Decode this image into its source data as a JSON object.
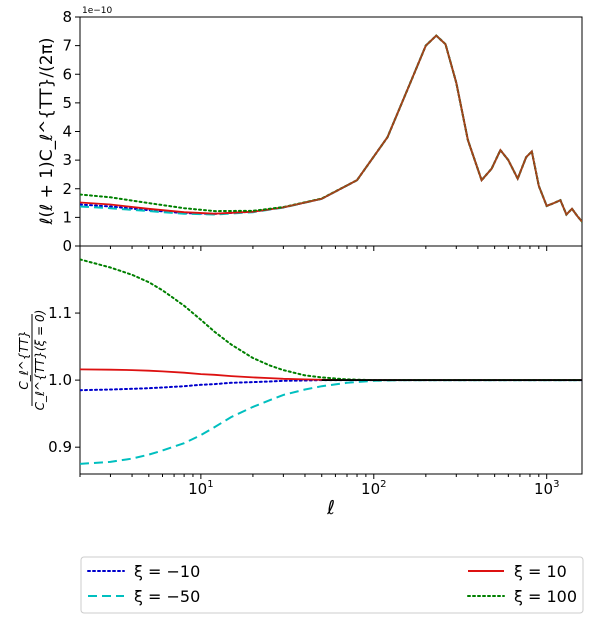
{
  "chart_data": [
    {
      "type": "line",
      "panel": "top",
      "ylabel": "ℓ(ℓ + 1)C_ℓ^{TT}/(2π)",
      "y_offset_label": "1e−10",
      "xscale": "log",
      "xlim": [
        2,
        1600
      ],
      "ylim": [
        0,
        8
      ],
      "y_ticks": [
        "0",
        "1",
        "2",
        "3",
        "4",
        "5",
        "6",
        "7",
        "8"
      ],
      "x_ticks": [
        {
          "value": 10,
          "label": "10",
          "exp": "1"
        },
        {
          "value": 100,
          "label": "10",
          "exp": "2"
        },
        {
          "value": 1000,
          "label": "10",
          "exp": "3"
        }
      ],
      "x": [
        2,
        3,
        5,
        8,
        12,
        20,
        30,
        50,
        80,
        120,
        160,
        200,
        230,
        260,
        300,
        350,
        420,
        480,
        540,
        600,
        680,
        760,
        820,
        900,
        1000,
        1100,
        1200,
        1300,
        1400,
        1500,
        1600
      ],
      "series": [
        {
          "name": "ξ = −10",
          "color": "#0000cc",
          "style": "dotted",
          "values": [
            1.45,
            1.38,
            1.25,
            1.15,
            1.12,
            1.2,
            1.35,
            1.65,
            2.3,
            3.8,
            5.6,
            7.0,
            7.35,
            7.05,
            5.7,
            3.7,
            2.3,
            2.7,
            3.35,
            3.0,
            2.35,
            3.1,
            3.3,
            2.1,
            1.4,
            1.5,
            1.6,
            1.1,
            1.3,
            1.05,
            0.85
          ]
        },
        {
          "name": "ξ = −50",
          "color": "#00bfbf",
          "style": "dashed",
          "values": [
            1.38,
            1.32,
            1.22,
            1.13,
            1.1,
            1.18,
            1.34,
            1.65,
            2.3,
            3.8,
            5.6,
            7.0,
            7.35,
            7.05,
            5.7,
            3.7,
            2.3,
            2.7,
            3.35,
            3.0,
            2.35,
            3.1,
            3.3,
            2.1,
            1.4,
            1.5,
            1.6,
            1.1,
            1.3,
            1.05,
            0.85
          ]
        },
        {
          "name": "ξ = 10",
          "color": "#dd1111",
          "style": "solid",
          "values": [
            1.52,
            1.45,
            1.3,
            1.18,
            1.13,
            1.2,
            1.35,
            1.65,
            2.3,
            3.8,
            5.6,
            7.0,
            7.35,
            7.05,
            5.7,
            3.7,
            2.3,
            2.7,
            3.35,
            3.0,
            2.35,
            3.1,
            3.3,
            2.1,
            1.4,
            1.5,
            1.6,
            1.1,
            1.3,
            1.05,
            0.85
          ]
        },
        {
          "name": "ξ = 100",
          "color": "#008000",
          "style": "dotted",
          "values": [
            1.8,
            1.7,
            1.5,
            1.32,
            1.22,
            1.23,
            1.36,
            1.66,
            2.3,
            3.8,
            5.6,
            7.0,
            7.35,
            7.05,
            5.7,
            3.7,
            2.3,
            2.7,
            3.35,
            3.0,
            2.35,
            3.1,
            3.3,
            2.1,
            1.4,
            1.5,
            1.6,
            1.1,
            1.3,
            1.05,
            0.85
          ]
        },
        {
          "name": "",
          "color": "#a0451a",
          "style": "solid",
          "from_x": 25,
          "values": [
            null,
            null,
            null,
            null,
            null,
            null,
            1.35,
            1.65,
            2.3,
            3.8,
            5.6,
            7.0,
            7.35,
            7.05,
            5.7,
            3.7,
            2.3,
            2.7,
            3.35,
            3.0,
            2.35,
            3.1,
            3.3,
            2.1,
            1.4,
            1.5,
            1.6,
            1.1,
            1.3,
            1.05,
            0.85
          ]
        }
      ]
    },
    {
      "type": "line",
      "panel": "bottom",
      "ylabel_num": "C_ℓ^{TT}",
      "ylabel_den": "C_ℓ^{TT}(ξ = 0)",
      "xlabel": "ℓ",
      "xscale": "log",
      "xlim": [
        2,
        1600
      ],
      "ylim": [
        0.86,
        1.2
      ],
      "y_ticks": [
        {
          "value": 0.9,
          "label": "0.9"
        },
        {
          "value": 1.0,
          "label": "1.0"
        },
        {
          "value": 1.1,
          "label": "1.1"
        }
      ],
      "x_ticks": [
        {
          "value": 10,
          "label": "10",
          "exp": "1"
        },
        {
          "value": 100,
          "label": "10",
          "exp": "2"
        },
        {
          "value": 1000,
          "label": "10",
          "exp": "3"
        }
      ],
      "x": [
        2,
        3,
        4,
        5,
        6,
        8,
        10,
        12,
        15,
        20,
        25,
        30,
        40,
        50,
        70,
        100,
        150,
        200,
        300,
        500,
        1000,
        1600
      ],
      "series": [
        {
          "name": "ξ = −10",
          "color": "#0000cc",
          "style": "dotted",
          "values": [
            0.985,
            0.986,
            0.987,
            0.988,
            0.989,
            0.991,
            0.993,
            0.994,
            0.996,
            0.997,
            0.998,
            0.999,
            0.9995,
            1.0,
            1.0,
            1.0,
            1.0,
            1.0,
            1.0,
            1.0,
            1.0,
            1.0
          ]
        },
        {
          "name": "ξ = −50",
          "color": "#00bfbf",
          "style": "dashed",
          "values": [
            0.875,
            0.878,
            0.883,
            0.889,
            0.895,
            0.906,
            0.918,
            0.93,
            0.945,
            0.96,
            0.97,
            0.978,
            0.986,
            0.991,
            0.996,
            0.999,
            1.0,
            1.0,
            1.0,
            1.0,
            1.0,
            1.0
          ]
        },
        {
          "name": "ξ = 10",
          "color": "#dd1111",
          "style": "solid",
          "values": [
            1.016,
            1.0155,
            1.015,
            1.014,
            1.013,
            1.011,
            1.009,
            1.008,
            1.006,
            1.004,
            1.003,
            1.002,
            1.001,
            1.0005,
            1.0,
            1.0,
            1.0,
            1.0,
            1.0,
            1.0,
            1.0,
            1.0
          ]
        },
        {
          "name": "ξ = 100",
          "color": "#008000",
          "style": "dotted",
          "values": [
            1.18,
            1.168,
            1.157,
            1.146,
            1.134,
            1.111,
            1.09,
            1.072,
            1.053,
            1.033,
            1.022,
            1.015,
            1.007,
            1.004,
            1.001,
            1.0,
            1.0,
            1.0,
            1.0,
            1.0,
            1.0,
            1.0
          ]
        },
        {
          "name": "",
          "color": "#000000",
          "style": "solid",
          "values": [
            null,
            null,
            null,
            null,
            null,
            null,
            null,
            null,
            null,
            null,
            null,
            null,
            null,
            1.0,
            1.0,
            1.0,
            1.0,
            1.0,
            1.0,
            1.0,
            1.0,
            1.0
          ]
        }
      ]
    }
  ],
  "legend": {
    "placement": "bottom",
    "items": [
      {
        "label": "ξ = −10",
        "color": "#0000cc",
        "style": "dotted"
      },
      {
        "label": "ξ = −50",
        "color": "#00bfbf",
        "style": "dashed"
      },
      {
        "label": "ξ = 10",
        "color": "#dd1111",
        "style": "solid"
      },
      {
        "label": "ξ = 100",
        "color": "#008000",
        "style": "dotted"
      }
    ]
  }
}
